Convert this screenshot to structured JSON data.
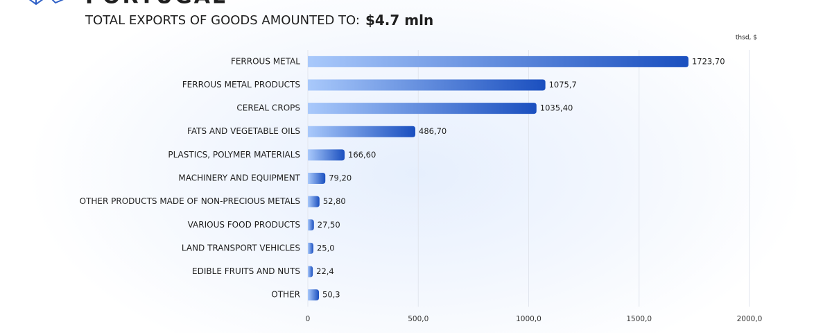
{
  "chart_data": {
    "type": "hbar",
    "title": "PORTUGAL",
    "subtitle": "TOTAL EXPORTS OF GOODS AMOUNTED TO:",
    "subtitle_value": "$4.7 mln",
    "unit_label": "thsd, $",
    "categories": [
      "FERROUS METAL",
      "FERROUS METAL PRODUCTS",
      "CEREAL CROPS",
      "FATS AND VEGETABLE OILS",
      "PLASTICS, POLYMER MATERIALS",
      "MACHINERY AND EQUIPMENT",
      "OTHER PRODUCTS MADE OF NON-PRECIOUS METALS",
      "VARIOUS FOOD PRODUCTS",
      "LAND TRANSPORT VEHICLES",
      "EDIBLE FRUITS AND NUTS",
      "OTHER"
    ],
    "values": [
      1723.7,
      1075.7,
      1035.4,
      486.7,
      166.6,
      79.2,
      52.8,
      27.5,
      25.0,
      22.4,
      50.3
    ],
    "value_labels": [
      "1723,70",
      "1075,7",
      "1035,40",
      "486,70",
      "166,60",
      "79,20",
      "52,80",
      "27,50",
      "25,0",
      "22,4",
      "50,3"
    ],
    "color": "#1a4fbf",
    "color_light": "#a9c9fb",
    "xlim": [
      0,
      2000
    ],
    "xticks": [
      0,
      {
        "value": 500,
        "label": "500,0"
      },
      {
        "value": 1000,
        "label": "1000,0"
      },
      {
        "value": 1500,
        "label": "1500,0"
      },
      {
        "value": 2000,
        "label": "2000,0"
      }
    ],
    "grid": true
  }
}
